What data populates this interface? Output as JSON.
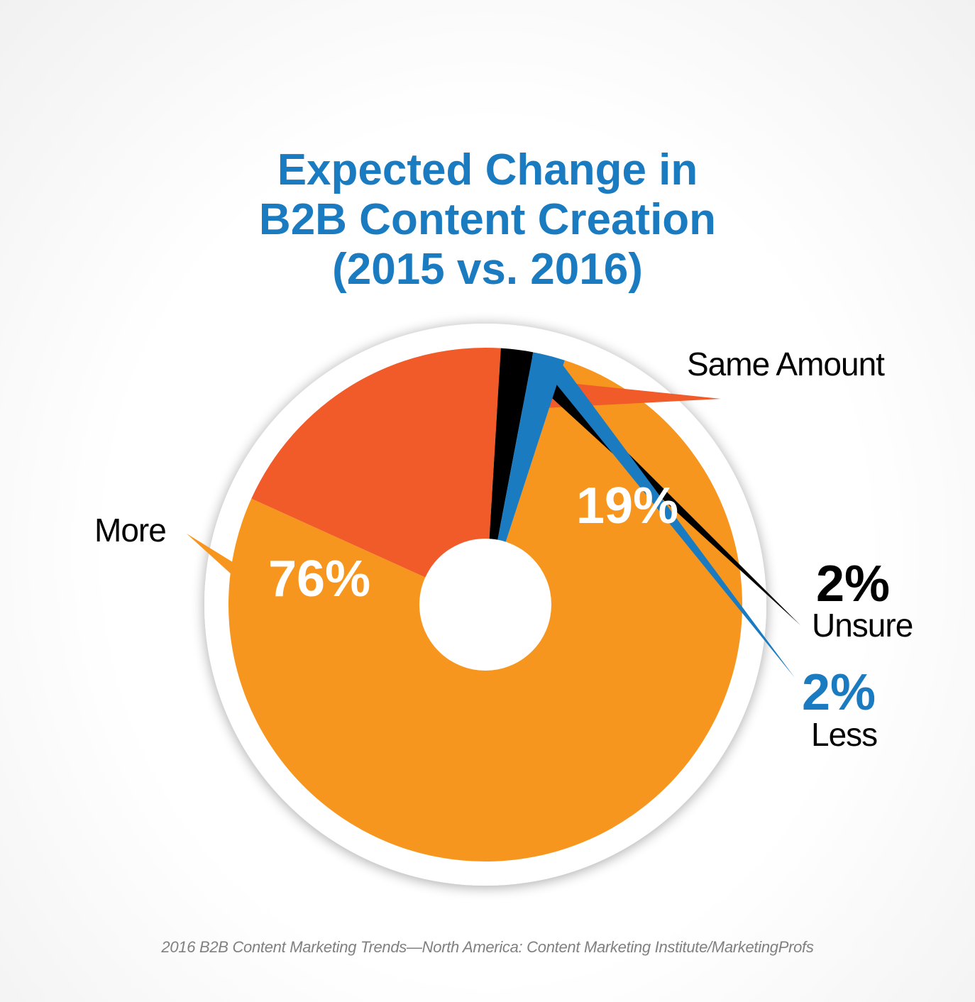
{
  "chart_data": {
    "type": "pie",
    "title_lines": [
      "Expected Change in",
      "B2B Content Creation",
      "(2015 vs. 2016)"
    ],
    "slices": [
      {
        "label": "More",
        "value": 76,
        "display": "76%",
        "color": "#f7961e"
      },
      {
        "label": "Same Amount",
        "value": 19,
        "display": "19%",
        "color": "#f15a29"
      },
      {
        "label": "Unsure",
        "value": 2,
        "display": "2%",
        "color": "#000000"
      },
      {
        "label": "Less",
        "value": 2,
        "display": "2%",
        "color": "#1a7bc0"
      }
    ],
    "source": "2016 B2B Content Marketing Trends—North America: Content Marketing Institute/MarketingProfs"
  },
  "colors": {
    "title": "#1a7bc0",
    "hole": "#ffffff",
    "rim": "#ffffff"
  }
}
